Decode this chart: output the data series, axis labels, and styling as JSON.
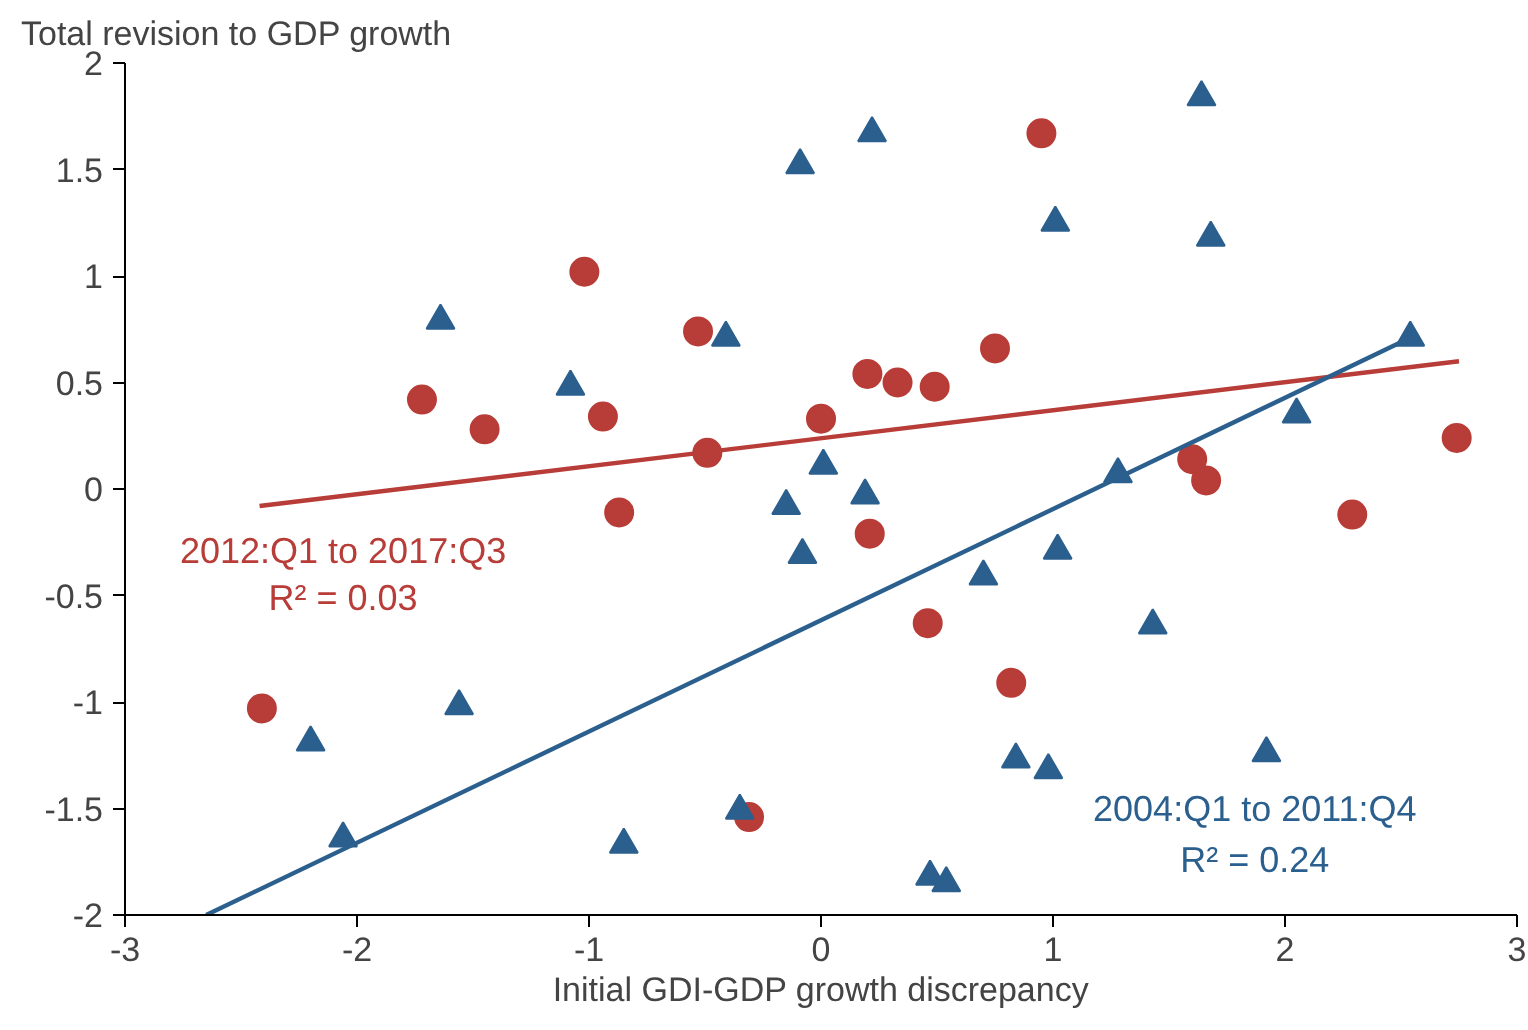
{
  "chart_data": {
    "type": "scatter",
    "title": "Total revision to GDP growth",
    "xlabel": "Initial GDI-GDP growth discrepancy",
    "xlim": [
      -3,
      3
    ],
    "xticks": [
      -3,
      -2,
      -1,
      0,
      1,
      2,
      3
    ],
    "ylim": [
      -2,
      2
    ],
    "yticks": [
      -2,
      -1.5,
      -1,
      -0.5,
      0,
      0.5,
      1,
      1.5,
      2
    ],
    "grid": false,
    "series": [
      {
        "marker": "circle",
        "color": "#b83c37",
        "x": [
          -1.02,
          -0.53,
          -1.72,
          -0.94,
          -1.45,
          -0.49,
          -0.87,
          0.95,
          0.75,
          0.2,
          0.33,
          0.49,
          0.0,
          2.74,
          1.6,
          1.66,
          2.29,
          -2.41,
          -0.31,
          0.21,
          0.46,
          0.82
        ],
        "values": [
          1.02,
          0.74,
          0.42,
          0.34,
          0.28,
          0.17,
          -0.11,
          1.67,
          0.66,
          0.54,
          0.5,
          0.48,
          0.33,
          0.24,
          0.14,
          0.04,
          -0.12,
          -1.03,
          -1.54,
          -0.21,
          -0.63,
          -0.91
        ]
      },
      {
        "marker": "triangle",
        "color": "#2b5f8e",
        "x": [
          -0.09,
          -1.64,
          -0.41,
          -1.08,
          -0.15,
          0.22,
          1.64,
          1.01,
          1.68,
          2.54,
          2.05,
          1.28,
          0.01,
          0.19,
          -0.08,
          -2.2,
          -1.56,
          -2.06,
          -0.85,
          -0.35,
          0.7,
          1.02,
          1.43,
          0.84,
          0.98,
          1.92,
          0.47,
          0.54
        ],
        "values": [
          1.52,
          0.79,
          0.71,
          0.48,
          -0.08,
          1.67,
          1.84,
          1.25,
          1.18,
          0.71,
          0.35,
          0.07,
          0.11,
          -0.03,
          -0.31,
          -1.19,
          -1.02,
          -1.64,
          -1.67,
          -1.51,
          -0.41,
          -0.29,
          -0.64,
          -1.27,
          -1.32,
          -1.24,
          -1.82,
          -1.85
        ]
      },
      {
        "type": "line",
        "line_style": "solid",
        "color": "#b83c37",
        "x": [
          -2.42,
          2.75
        ],
        "values": [
          -0.08,
          0.6
        ]
      },
      {
        "type": "line",
        "line_style": "solid",
        "color": "#2b5f8e",
        "x": [
          -2.65,
          2.54
        ],
        "values": [
          -2.0,
          0.71
        ]
      }
    ],
    "annotations": [
      "2012:Q1 to 2017:Q3",
      "R² = 0.03",
      "2004:Q1 to 2011:Q4",
      "R² = 0.24"
    ]
  }
}
